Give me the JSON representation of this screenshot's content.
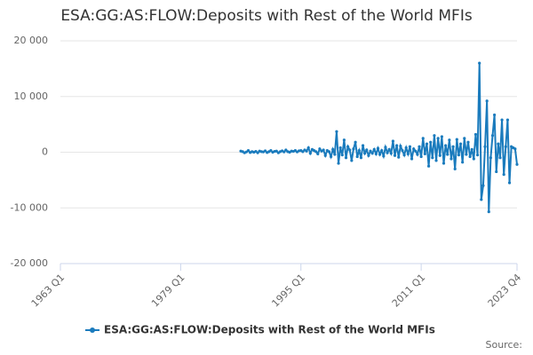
{
  "chart_data": {
    "type": "line",
    "title": "ESA:GG:AS:FLOW:Deposits with Rest of the World MFIs",
    "source": "Source:",
    "categories": [
      "1963 Q1",
      null,
      null,
      null,
      null,
      null,
      null,
      null,
      null,
      null,
      null,
      null,
      null,
      null,
      null,
      null,
      null,
      null,
      null,
      null,
      null,
      null,
      null,
      null,
      null,
      null,
      null,
      null,
      null,
      null,
      null,
      null,
      null,
      null,
      null,
      null,
      null,
      null,
      null,
      null,
      null,
      null,
      null,
      null,
      null,
      null,
      null,
      null,
      null,
      null,
      null,
      null,
      null,
      null,
      null,
      null,
      null,
      null,
      null,
      null,
      null,
      null,
      null,
      null,
      "1979 Q1",
      null,
      null,
      null,
      null,
      null,
      null,
      null,
      null,
      null,
      null,
      null,
      null,
      null,
      null,
      null,
      null,
      null,
      null,
      null,
      null,
      null,
      null,
      null,
      null,
      null,
      null,
      null,
      null,
      null,
      null,
      null,
      null,
      null,
      null,
      null,
      null,
      null,
      null,
      null,
      null,
      null,
      null,
      null,
      null,
      null,
      null,
      null,
      null,
      null,
      null,
      null,
      null,
      null,
      null,
      null,
      null,
      null,
      null,
      null,
      null,
      null,
      null,
      null,
      "1995 Q1",
      null,
      null,
      null,
      null,
      null,
      null,
      null,
      null,
      null,
      null,
      null,
      null,
      null,
      null,
      null,
      null,
      null,
      null,
      null,
      null,
      null,
      null,
      null,
      null,
      null,
      null,
      null,
      null,
      null,
      null,
      null,
      null,
      null,
      null,
      null,
      null,
      null,
      null,
      null,
      null,
      null,
      null,
      null,
      null,
      null,
      null,
      null,
      null,
      null,
      null,
      null,
      null,
      null,
      null,
      null,
      null,
      null,
      null,
      null,
      null,
      null,
      null,
      null,
      "2011 Q1",
      null,
      null,
      null,
      null,
      null,
      null,
      null,
      null,
      null,
      null,
      null,
      null,
      null,
      null,
      null,
      null,
      null,
      null,
      null,
      null,
      null,
      null,
      null,
      null,
      null,
      null,
      null,
      null,
      null,
      null,
      null,
      null,
      null,
      null,
      null,
      null,
      null,
      null,
      null,
      null,
      null,
      null,
      null,
      null,
      null,
      null,
      null,
      null,
      null,
      null,
      "2023 Q4"
    ],
    "series": [
      {
        "name": "ESA:GG:AS:FLOW:Deposits with Rest of the World MFIs",
        "color": "#1a7bbd",
        "values": [
          null,
          null,
          null,
          null,
          null,
          null,
          null,
          null,
          null,
          null,
          null,
          null,
          null,
          null,
          null,
          null,
          null,
          null,
          null,
          null,
          null,
          null,
          null,
          null,
          null,
          null,
          null,
          null,
          null,
          null,
          null,
          null,
          null,
          null,
          null,
          null,
          null,
          null,
          null,
          null,
          null,
          null,
          null,
          null,
          null,
          null,
          null,
          null,
          null,
          null,
          null,
          null,
          null,
          null,
          null,
          null,
          null,
          null,
          null,
          null,
          null,
          null,
          null,
          null,
          null,
          null,
          null,
          null,
          null,
          null,
          null,
          null,
          null,
          null,
          null,
          null,
          null,
          null,
          null,
          null,
          null,
          null,
          null,
          null,
          null,
          null,
          null,
          null,
          null,
          null,
          null,
          null,
          null,
          null,
          null,
          null,
          200,
          100,
          -100,
          50,
          300,
          -50,
          100,
          0,
          150,
          -100,
          200,
          100,
          50,
          250,
          -50,
          100,
          300,
          0,
          150,
          200,
          -100,
          100,
          250,
          50,
          400,
          100,
          0,
          200,
          150,
          300,
          50,
          250,
          300,
          100,
          400,
          200,
          800,
          -200,
          500,
          300,
          100,
          -300,
          600,
          200,
          400,
          -600,
          300,
          100,
          -800,
          500,
          -400,
          3700,
          -2000,
          800,
          -500,
          2200,
          -1000,
          1000,
          400,
          -1500,
          600,
          1800,
          -800,
          300,
          -1000,
          1200,
          -200,
          400,
          -600,
          200,
          -200,
          500,
          -300,
          700,
          -400,
          300,
          -700,
          900,
          -100,
          500,
          -200,
          2000,
          -600,
          1200,
          -900,
          1100,
          300,
          -500,
          800,
          -300,
          1000,
          -1200,
          600,
          200,
          -400,
          1000,
          -800,
          2500,
          -300,
          1500,
          -2500,
          1800,
          -1000,
          3000,
          -1500,
          2500,
          -600,
          2800,
          -2000,
          1200,
          -400,
          2200,
          -1200,
          1000,
          -3000,
          2300,
          -500,
          1500,
          -1800,
          2500,
          -400,
          1800,
          -800,
          500,
          -1200,
          3200,
          -500,
          16000,
          -8500,
          -6000,
          1000,
          9200,
          -10700,
          -1000,
          3000,
          6700,
          -3500,
          1500,
          -1000,
          5800,
          -4000,
          1000,
          5800,
          -5500,
          1000,
          800,
          600,
          -2200
        ]
      }
    ],
    "ylim": [
      -20000,
      20000
    ],
    "yticks": [
      {
        "value": -20000,
        "label": "-20 000"
      },
      {
        "value": -10000,
        "label": "-10 000"
      },
      0,
      {
        "value": 10000,
        "label": "10 000"
      },
      {
        "value": 20000,
        "label": "20 000"
      }
    ],
    "grid": true
  }
}
